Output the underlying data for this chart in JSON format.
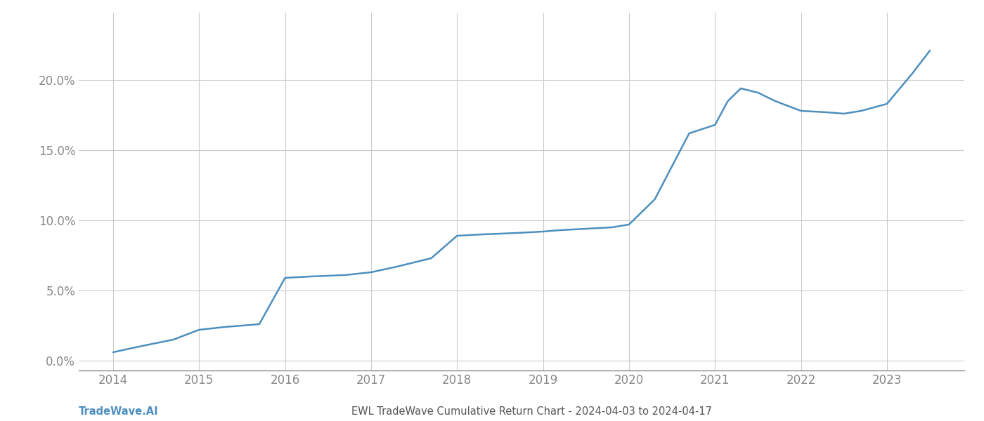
{
  "title": "EWL TradeWave Cumulative Return Chart - 2024-04-03 to 2024-04-17",
  "watermark": "TradeWave.AI",
  "line_color": "#4d8fbf",
  "background_color": "#ffffff",
  "grid_color": "#cccccc",
  "x_values": [
    2014.0,
    2014.3,
    2014.7,
    2015.0,
    2015.3,
    2015.7,
    2016.0,
    2016.3,
    2016.7,
    2017.0,
    2017.3,
    2017.7,
    2018.0,
    2018.3,
    2018.7,
    2019.0,
    2019.2,
    2019.5,
    2019.8,
    2020.0,
    2020.3,
    2020.7,
    2021.0,
    2021.15,
    2021.3,
    2021.5,
    2021.7,
    2022.0,
    2022.3,
    2022.5,
    2022.7,
    2023.0,
    2023.3,
    2023.5
  ],
  "y_values": [
    0.006,
    0.01,
    0.015,
    0.022,
    0.024,
    0.026,
    0.059,
    0.06,
    0.061,
    0.063,
    0.067,
    0.073,
    0.089,
    0.09,
    0.091,
    0.092,
    0.093,
    0.094,
    0.095,
    0.097,
    0.115,
    0.162,
    0.168,
    0.185,
    0.194,
    0.191,
    0.185,
    0.178,
    0.177,
    0.176,
    0.178,
    0.183,
    0.205,
    0.221
  ],
  "xlim": [
    2013.6,
    2023.9
  ],
  "ylim": [
    -0.007,
    0.248
  ],
  "yticks": [
    0.0,
    0.05,
    0.1,
    0.15,
    0.2
  ],
  "ytick_labels": [
    "0.0%",
    "5.0%",
    "10.0%",
    "15.0%",
    "20.0%"
  ],
  "xticks": [
    2014,
    2015,
    2016,
    2017,
    2018,
    2019,
    2020,
    2021,
    2022,
    2023
  ],
  "tick_color": "#888888",
  "axis_color": "#888888",
  "font_color": "#555555",
  "line_width": 1.8
}
